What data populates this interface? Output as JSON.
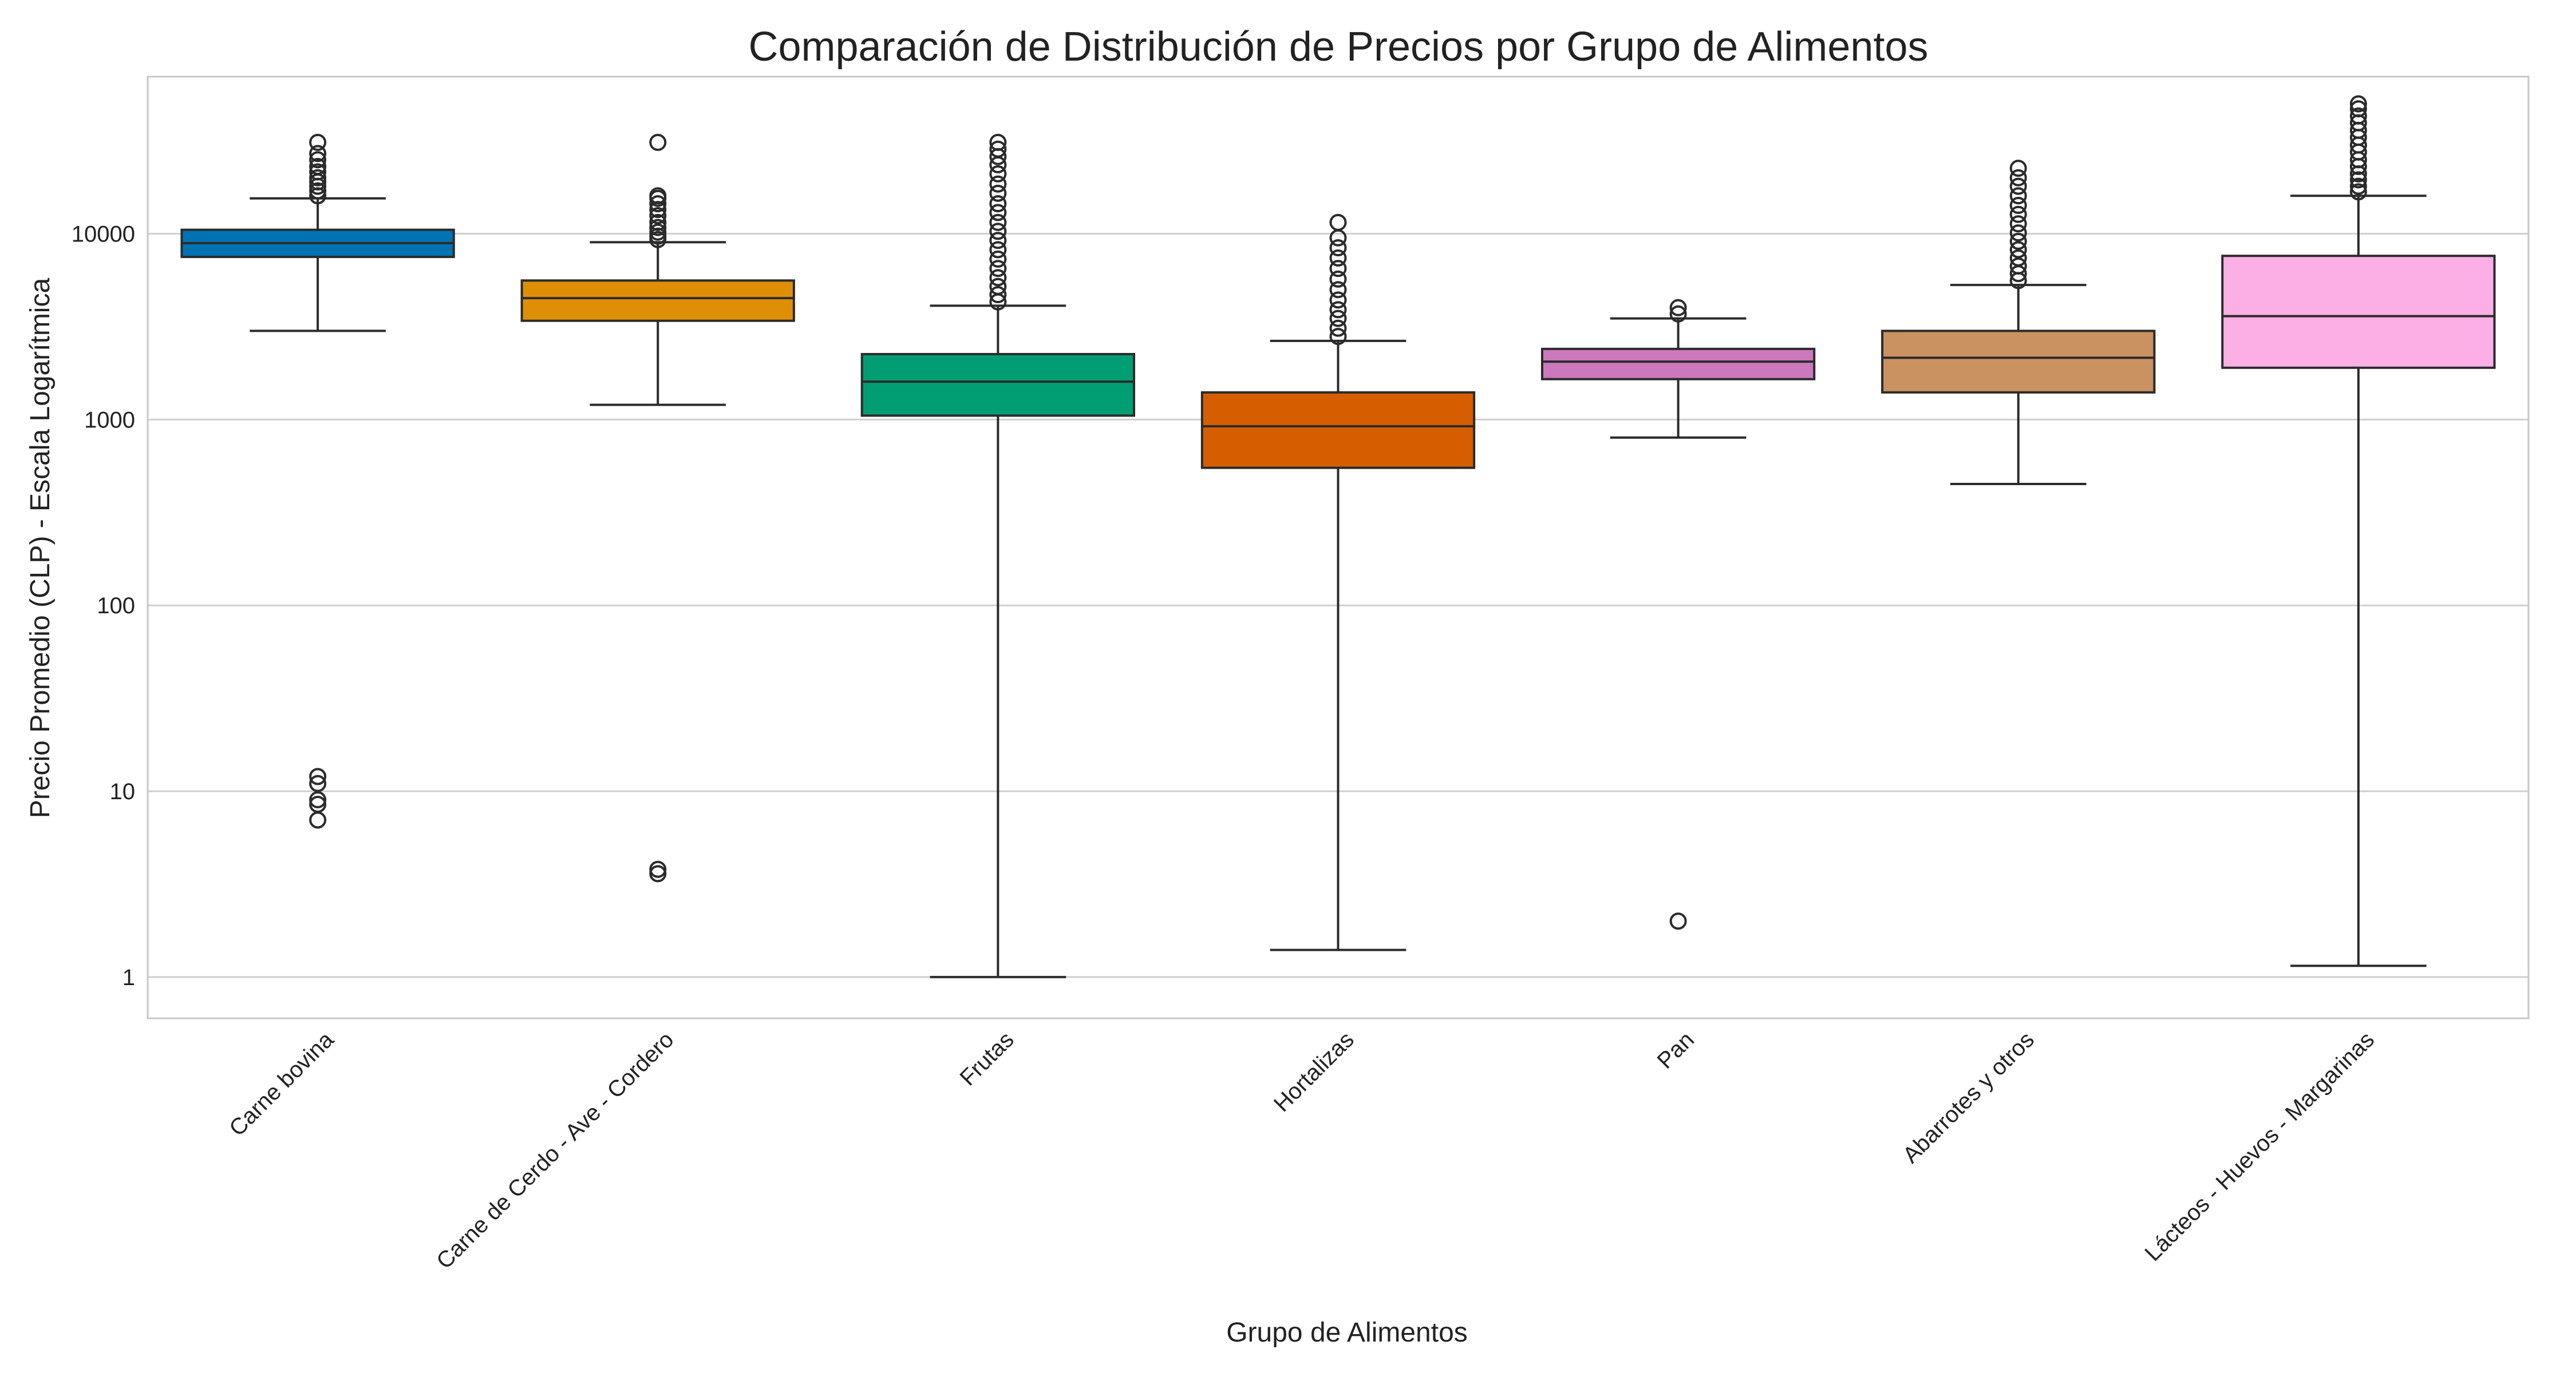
{
  "chart_data": {
    "type": "box",
    "title": "Comparación de Distribución de Precios por Grupo de Alimentos",
    "xlabel": "Grupo de Alimentos",
    "ylabel": "Precio Promedio (CLP) - Escala Logarítmica",
    "yscale": "log",
    "ylim": [
      0.6,
      70000
    ],
    "yticks": [
      1,
      10,
      100,
      1000,
      10000
    ],
    "ytick_labels": [
      "1",
      "10",
      "100",
      "1000",
      "10000"
    ],
    "grid": true,
    "categories": [
      "Carne bovina",
      "Carne de Cerdo - Ave - Cordero",
      "Frutas",
      "Hortalizas",
      "Pan",
      "Abarrotes y otros",
      "Lácteos - Huevos - Margarinas"
    ],
    "series": [
      {
        "color": "#0173b2",
        "q1": 7500,
        "median": 8900,
        "q3": 10500,
        "whisker_low": 3000,
        "whisker_high": 15500,
        "outliers": [
          16000,
          17000,
          18000,
          19000,
          20000,
          21500,
          23000,
          25000,
          27000,
          31000,
          12,
          11,
          9,
          8.5,
          7
        ]
      },
      {
        "color": "#de8f05",
        "q1": 3400,
        "median": 4500,
        "q3": 5600,
        "whisker_low": 1200,
        "whisker_high": 9000,
        "outliers": [
          9300,
          9700,
          10200,
          10800,
          11500,
          12500,
          13500,
          14500,
          15500,
          16000,
          31000,
          3.8,
          3.6
        ]
      },
      {
        "color": "#029e73",
        "q1": 1050,
        "median": 1600,
        "q3": 2250,
        "whisker_low": 1,
        "whisker_high": 4100,
        "outliers": [
          4300,
          4700,
          5200,
          5800,
          6500,
          7300,
          8200,
          9200,
          10300,
          11500,
          13000,
          14500,
          16500,
          18500,
          21000,
          23500,
          26000,
          28500,
          31000
        ]
      },
      {
        "color": "#d55e00",
        "q1": 550,
        "median": 920,
        "q3": 1400,
        "whisker_low": 1.4,
        "whisker_high": 2650,
        "outliers": [
          2800,
          3100,
          3500,
          3900,
          4400,
          5000,
          5700,
          6500,
          7400,
          8400,
          9500,
          11500
        ]
      },
      {
        "color": "#cc78bc",
        "q1": 1650,
        "median": 2050,
        "q3": 2400,
        "whisker_low": 800,
        "whisker_high": 3500,
        "outliers": [
          3700,
          4000,
          2
        ]
      },
      {
        "color": "#ca9161",
        "q1": 1400,
        "median": 2150,
        "q3": 3000,
        "whisker_low": 450,
        "whisker_high": 5300,
        "outliers": [
          5600,
          6100,
          6700,
          7400,
          8200,
          9100,
          10100,
          11300,
          12700,
          14200,
          16000,
          18000,
          20000,
          22500
        ]
      },
      {
        "color": "#fbafe4",
        "q1": 1900,
        "median": 3600,
        "q3": 7600,
        "whisker_low": 1.15,
        "whisker_high": 16000,
        "outliers": [
          16800,
          18000,
          19500,
          21000,
          23000,
          25000,
          27500,
          30000,
          33000,
          36000,
          39500,
          43000,
          47000,
          50000
        ]
      }
    ]
  }
}
